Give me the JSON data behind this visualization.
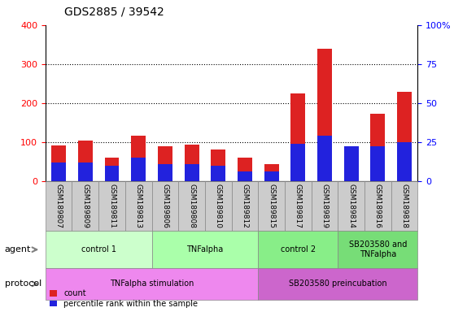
{
  "title": "GDS2885 / 39542",
  "samples": [
    "GSM189807",
    "GSM189809",
    "GSM189811",
    "GSM189813",
    "GSM189806",
    "GSM189808",
    "GSM189810",
    "GSM189812",
    "GSM189815",
    "GSM189817",
    "GSM189819",
    "GSM189814",
    "GSM189816",
    "GSM189818"
  ],
  "count_values": [
    92,
    103,
    60,
    117,
    90,
    93,
    80,
    60,
    43,
    225,
    340,
    90,
    173,
    228
  ],
  "percentile_values": [
    12,
    12,
    10,
    15,
    11,
    11,
    10,
    6,
    6,
    24,
    29,
    22,
    22,
    25
  ],
  "ylim_left": [
    0,
    400
  ],
  "ylim_right": [
    0,
    100
  ],
  "yticks_left": [
    0,
    100,
    200,
    300,
    400
  ],
  "yticks_right": [
    0,
    25,
    50,
    75,
    100
  ],
  "ytick_labels_right": [
    "0",
    "25",
    "50",
    "75",
    "100%"
  ],
  "bar_color_red": "#dd2222",
  "bar_color_blue": "#2222dd",
  "grid_color": "#000000",
  "agent_groups": [
    {
      "label": "control 1",
      "start": 0,
      "end": 4,
      "color": "#ccffcc"
    },
    {
      "label": "TNFalpha",
      "start": 4,
      "end": 8,
      "color": "#aaffaa"
    },
    {
      "label": "control 2",
      "start": 8,
      "end": 11,
      "color": "#88ee88"
    },
    {
      "label": "SB203580 and\nTNFalpha",
      "start": 11,
      "end": 14,
      "color": "#77dd77"
    }
  ],
  "protocol_groups": [
    {
      "label": "TNFalpha stimulation",
      "start": 0,
      "end": 8,
      "color": "#ee88ee"
    },
    {
      "label": "SB203580 preincubation",
      "start": 8,
      "end": 14,
      "color": "#cc66cc"
    }
  ],
  "legend_count_label": "count",
  "legend_pct_label": "percentile rank within the sample",
  "xlabel_agent": "agent",
  "xlabel_protocol": "protocol",
  "bar_width": 0.55,
  "tick_label_bg": "#cccccc"
}
